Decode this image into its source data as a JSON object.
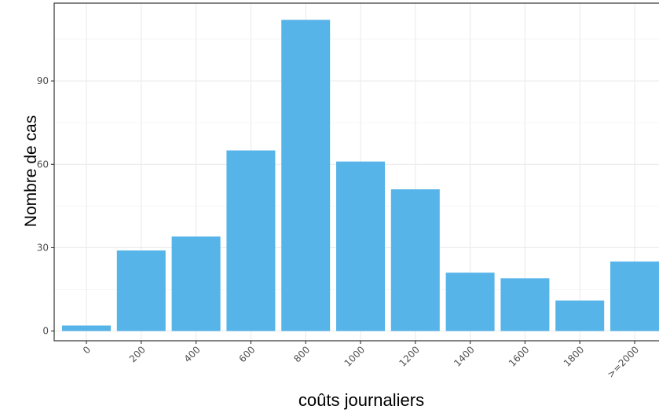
{
  "chart_data": {
    "type": "bar",
    "title": "",
    "xlabel": "coûts journaliers",
    "ylabel": "Nombre de cas",
    "categories": [
      "0",
      "200",
      "400",
      "600",
      "800",
      "1000",
      "1200",
      "1400",
      "1600",
      "1800",
      ">=2000"
    ],
    "values": [
      2,
      29,
      34,
      65,
      112,
      61,
      51,
      21,
      19,
      11,
      25
    ],
    "yticks": [
      0,
      30,
      60,
      90
    ],
    "ylim": [
      -3.5,
      118
    ],
    "grid": true,
    "bar_color": "#56B4E9",
    "legend": "none"
  }
}
